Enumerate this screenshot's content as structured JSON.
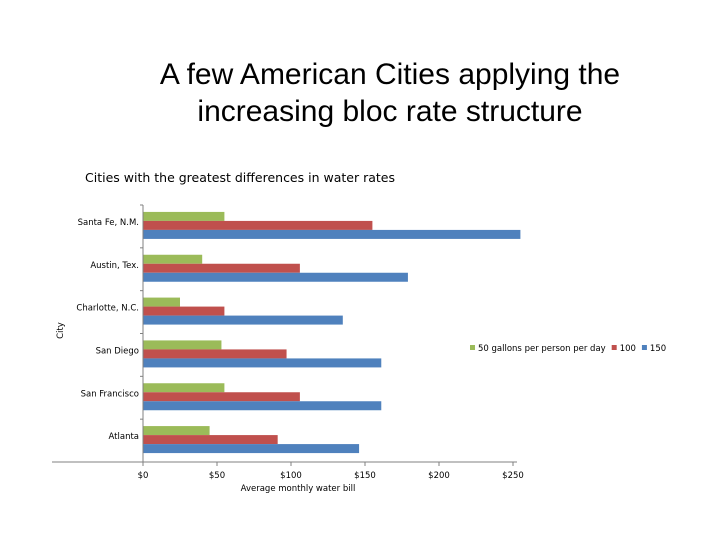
{
  "slide": {
    "title_line1": "A few American Cities applying the",
    "title_line2": "increasing bloc rate structure"
  },
  "chart_data": {
    "type": "bar",
    "orientation": "horizontal",
    "title": "Cities with the greatest differences in water rates",
    "xlabel": "Average monthly water bill",
    "ylabel": "City",
    "categories": [
      "Santa Fe, N.M.",
      "Austin, Tex.",
      "Charlotte, N.C.",
      "San Diego",
      "San Francisco",
      "Atlanta"
    ],
    "series": [
      {
        "name": "50 gallons per person per day",
        "color": "#9bbb59",
        "values": [
          55,
          40,
          25,
          53,
          55,
          45
        ]
      },
      {
        "name": "100",
        "color": "#c0504d",
        "values": [
          155,
          106,
          55,
          97,
          106,
          91
        ]
      },
      {
        "name": "150",
        "color": "#4f81bd",
        "values": [
          255,
          179,
          135,
          161,
          161,
          146
        ]
      }
    ],
    "xlim": [
      0,
      250
    ],
    "xticks": [
      0,
      50,
      100,
      150,
      200,
      250
    ],
    "xtick_labels": [
      "$0",
      "$50",
      "$100",
      "$150",
      "$200",
      "$250"
    ],
    "legend_position": "right",
    "grid": false
  }
}
